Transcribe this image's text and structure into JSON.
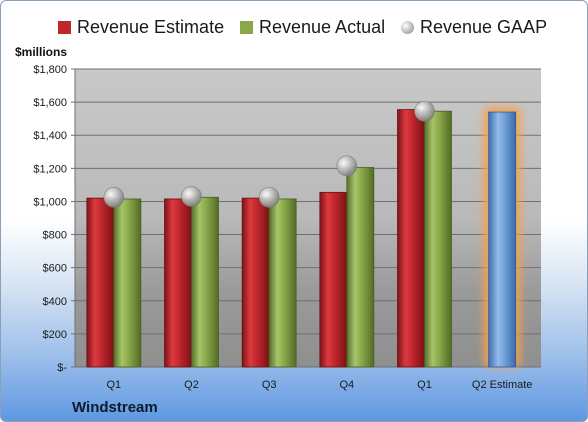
{
  "chart_data": {
    "type": "bar",
    "title": "",
    "ylabel": "$millions",
    "xlabel": "",
    "company": "Windstream",
    "ylim": [
      0,
      1800
    ],
    "ytick_step": 200,
    "ytick_labels": [
      "$-",
      "$200",
      "$400",
      "$600",
      "$800",
      "$1,000",
      "$1,200",
      "$1,400",
      "$1,600",
      "$1,800"
    ],
    "grid": true,
    "legend_position": "top",
    "categories": [
      "Q1",
      "Q2",
      "Q3",
      "Q4",
      "Q1",
      "Q2 Estimate"
    ],
    "series": [
      {
        "name": "Revenue Estimate",
        "kind": "bar",
        "color": "#c0272d",
        "values": [
          1020,
          1015,
          1020,
          1055,
          1555,
          null
        ]
      },
      {
        "name": "Revenue Actual",
        "kind": "bar",
        "color": "#8aa84a",
        "values": [
          1015,
          1025,
          1015,
          1205,
          1545,
          null
        ]
      },
      {
        "name": "Revenue GAAP",
        "kind": "marker",
        "color": "#b0b0b0",
        "values": [
          1025,
          1030,
          1025,
          1215,
          1545,
          null
        ]
      }
    ],
    "forecast": {
      "category": "Q2 Estimate",
      "value": 1540,
      "color": "#6f9fd8",
      "glow": "#f5a24b"
    }
  }
}
